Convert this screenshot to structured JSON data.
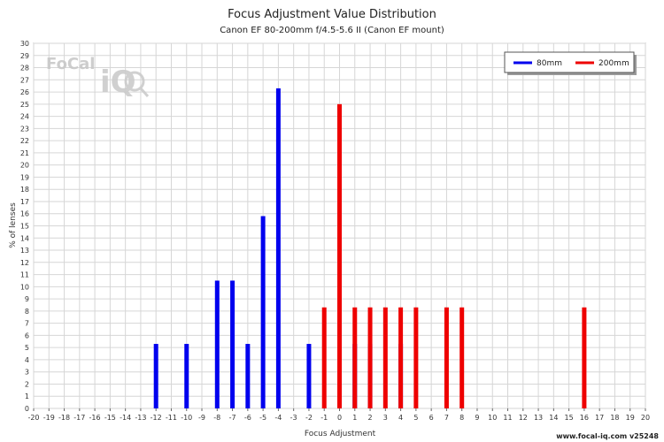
{
  "chart_data": {
    "type": "bar",
    "title": "Focus Adjustment Value Distribution",
    "subtitle": "Canon EF 80-200mm f/4.5-5.6 II (Canon EF mount)",
    "xlabel": "Focus Adjustment",
    "ylabel": "% of lenses",
    "xlim": [
      -20,
      20
    ],
    "ylim": [
      0,
      30
    ],
    "grid": true,
    "legend_position": "top-right",
    "series": [
      {
        "name": "80mm",
        "color": "#0000ee",
        "points": [
          {
            "x": -12,
            "y": 5.3
          },
          {
            "x": -10,
            "y": 5.3
          },
          {
            "x": -8,
            "y": 10.5
          },
          {
            "x": -7,
            "y": 10.5
          },
          {
            "x": -6,
            "y": 5.3
          },
          {
            "x": -5,
            "y": 15.8
          },
          {
            "x": -4,
            "y": 26.3
          },
          {
            "x": -2,
            "y": 5.3
          },
          {
            "x": 1,
            "y": 5.3
          },
          {
            "x": 2,
            "y": 5.3
          },
          {
            "x": 4,
            "y": 5.3
          }
        ]
      },
      {
        "name": "200mm",
        "color": "#ee0000",
        "points": [
          {
            "x": -1,
            "y": 8.3
          },
          {
            "x": 0,
            "y": 25.0
          },
          {
            "x": 1,
            "y": 8.3
          },
          {
            "x": 2,
            "y": 8.3
          },
          {
            "x": 3,
            "y": 8.3
          },
          {
            "x": 4,
            "y": 8.3
          },
          {
            "x": 5,
            "y": 8.3
          },
          {
            "x": 7,
            "y": 8.3
          },
          {
            "x": 8,
            "y": 8.3
          },
          {
            "x": 16,
            "y": 8.3
          }
        ]
      }
    ]
  },
  "logo": {
    "text": "FoCal",
    "mark": "iQ"
  },
  "footer": "www.focal-iq.com  v25248"
}
